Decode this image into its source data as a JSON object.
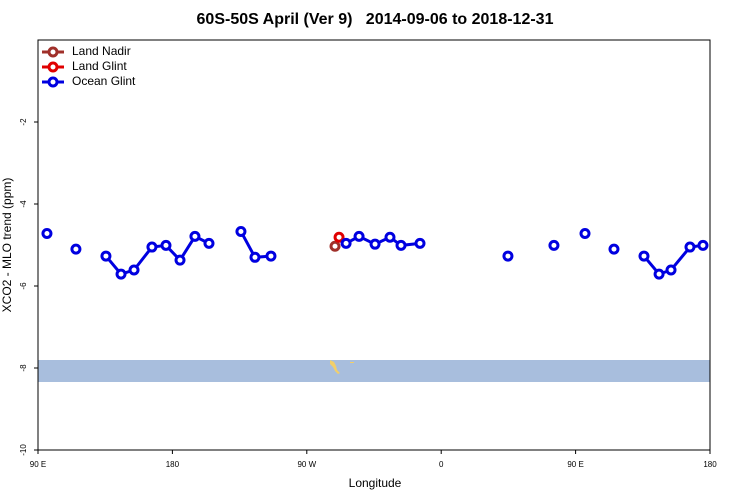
{
  "chart_data": {
    "type": "line",
    "title": "60S-50S April (Ver 9)   2014-09-06 to 2018-12-31",
    "xlabel": "Longitude",
    "ylabel": "XCO2 - MLO trend (ppm)",
    "xlim": [
      90,
      540
    ],
    "xticks": [
      {
        "value": 90,
        "label": "90 E"
      },
      {
        "value": 180,
        "label": "180"
      },
      {
        "value": 270,
        "label": "90 W"
      },
      {
        "value": 360,
        "label": "0"
      },
      {
        "value": 450,
        "label": "90 E"
      },
      {
        "value": 540,
        "label": "180"
      }
    ],
    "ylim": [
      -10,
      0
    ],
    "yticks": [
      -10,
      -8,
      -6,
      -4,
      -2
    ],
    "legend": "top-left",
    "series": [
      {
        "name": "Land Nadir",
        "color": "#a0302a",
        "x": [
          288.9
        ],
        "values": [
          -5.03
        ]
      },
      {
        "name": "Land Glint",
        "color": "#e00000",
        "x": [
          291.6
        ],
        "values": [
          -4.81
        ]
      },
      {
        "name": "Ocean Glint",
        "color": "#0000e0",
        "x": [
          96,
          null,
          115.4,
          null,
          135.5,
          145.6,
          154.3,
          166.3,
          175.7,
          185.1,
          195.1,
          204.5,
          null,
          225.9,
          235.3,
          246,
          null,
          296.3,
          305,
          315.7,
          325.7,
          333.1,
          345.8,
          null,
          404.7,
          null,
          435.5,
          null,
          456.3,
          null,
          475.7,
          null,
          495.8,
          505.9,
          513.9,
          526.6,
          535.3
        ],
        "values": [
          -4.72,
          null,
          -5.1,
          null,
          -5.27,
          -5.71,
          -5.61,
          -5.05,
          -5.01,
          -5.37,
          -4.79,
          -4.96,
          null,
          -4.67,
          -5.3,
          -5.27,
          null,
          -4.96,
          -4.79,
          -4.98,
          -4.81,
          -5.01,
          -4.96,
          null,
          -5.27,
          null,
          -5.01,
          null,
          -4.72,
          null,
          -5.1,
          null,
          -5.27,
          -5.71,
          -5.61,
          -5.05,
          -5.01
        ]
      }
    ]
  }
}
